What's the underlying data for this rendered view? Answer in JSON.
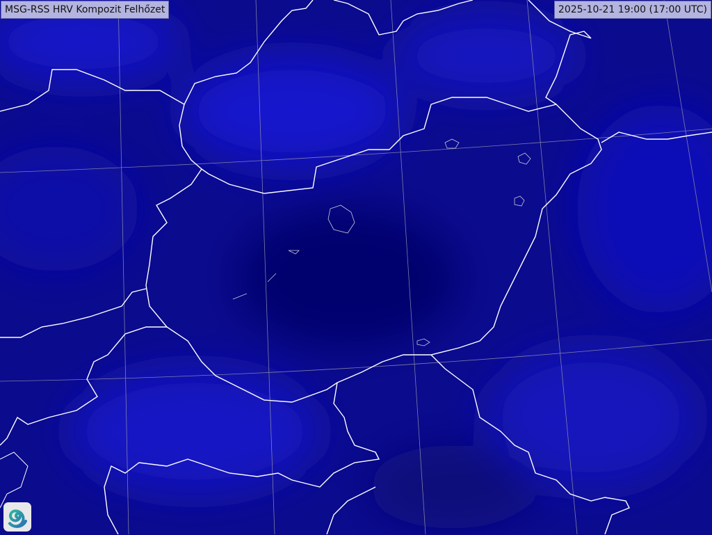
{
  "product_title": "MSG-RSS HRV Kompozit Felhőzet",
  "timestamp": "2025-10-21 19:00 (17:00 UTC)",
  "colors": {
    "background": "#0a0a8a",
    "cloud_tint": "#1a1ad0",
    "borders": "#ffffff",
    "graticule": "#9a9ab0",
    "label_bg": "#b4b4e0"
  },
  "logo": "spiral-logo-icon"
}
